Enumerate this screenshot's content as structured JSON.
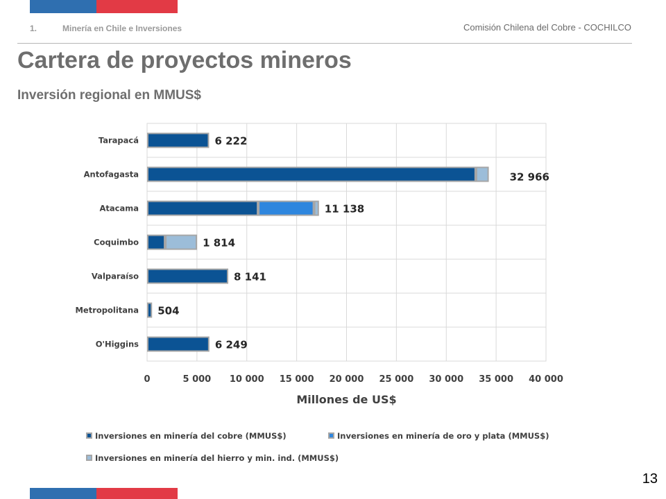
{
  "header": {
    "section_number": "1.",
    "section_title": "Minería en Chile e Inversiones",
    "organization": "Comisión Chilena del Cobre - COCHILCO"
  },
  "slide": {
    "title": "Cartera de proyectos mineros",
    "subtitle": "Inversión regional en MMUS$",
    "page_number": "13"
  },
  "colors": {
    "flag_blue": "#2f6fb0",
    "flag_red": "#e23a45",
    "cobre": "#0b5394",
    "oro_plata": "#2e86de",
    "hierro": "#9cbdd9",
    "outline": "#a6a6a6"
  },
  "chart_data": {
    "type": "bar",
    "orientation": "horizontal",
    "stacked": true,
    "categories": [
      "Tarapacá",
      "Antofagasta",
      "Atacama",
      "Coquimbo",
      "Valparaíso",
      "Metropolitana",
      "O'Higgins"
    ],
    "series": [
      {
        "name": "Inversiones en minería del cobre (MMUS$)",
        "values": [
          6222,
          32966,
          11138,
          1814,
          8141,
          504,
          6249
        ]
      },
      {
        "name": "Inversiones en minería de oro y plata (MMUS$)",
        "values": [
          0,
          0,
          5600,
          0,
          0,
          0,
          0
        ]
      },
      {
        "name": "Inversiones en minería del hierro y min. ind. (MMUS$)",
        "values": [
          0,
          1300,
          500,
          3200,
          0,
          0,
          0
        ]
      }
    ],
    "data_labels": [
      "6 222",
      "32 966",
      "11 138",
      "1 814",
      "8 141",
      "504",
      "6 249"
    ],
    "xlabel": "Millones de US$",
    "ylabel": "",
    "xlim": [
      0,
      40000
    ],
    "x_ticks": [
      0,
      5000,
      10000,
      15000,
      20000,
      25000,
      30000,
      35000,
      40000
    ],
    "x_tick_labels": [
      "0",
      "5 000",
      "10 000",
      "15 000",
      "20 000",
      "25 000",
      "30 000",
      "35 000",
      "40 000"
    ],
    "grid": true,
    "legend_position": "bottom"
  }
}
